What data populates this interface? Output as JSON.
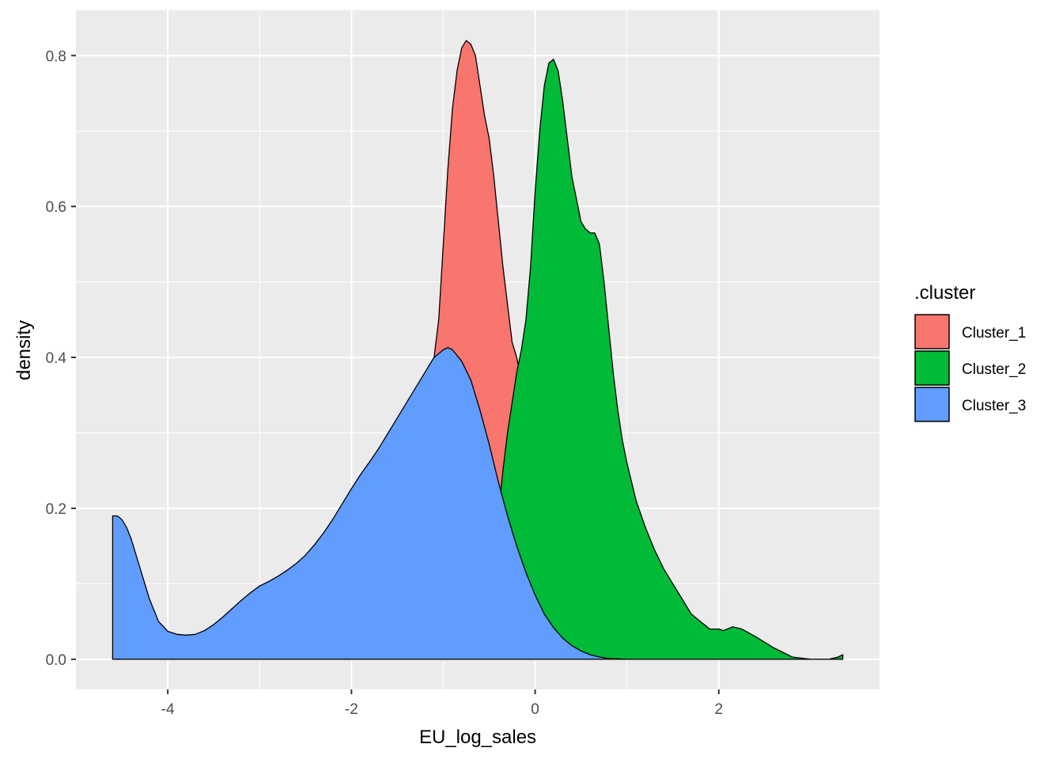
{
  "chart_data": {
    "type": "area",
    "xlabel": "EU_log_sales",
    "ylabel": "density",
    "xlim": [
      -5.0,
      3.75
    ],
    "ylim": [
      -0.04,
      0.86
    ],
    "x_ticks": [
      -4,
      -2,
      0,
      2
    ],
    "y_ticks": [
      0.0,
      0.2,
      0.4,
      0.6,
      0.8
    ],
    "x_tick_labels": [
      "-4",
      "-2",
      "0",
      "2"
    ],
    "y_tick_labels": [
      "0.0",
      "0.2",
      "0.4",
      "0.6",
      "0.8"
    ],
    "grid": true,
    "legend": {
      "title": ".cluster",
      "position": "right"
    },
    "series": [
      {
        "name": "Cluster_1",
        "color": "#F8766D",
        "points": [
          [
            -1.1,
            0.0
          ],
          [
            -1.1,
            0.4
          ],
          [
            -1.05,
            0.45
          ],
          [
            -1.0,
            0.55
          ],
          [
            -0.95,
            0.65
          ],
          [
            -0.9,
            0.73
          ],
          [
            -0.85,
            0.78
          ],
          [
            -0.8,
            0.81
          ],
          [
            -0.75,
            0.82
          ],
          [
            -0.7,
            0.815
          ],
          [
            -0.65,
            0.8
          ],
          [
            -0.6,
            0.76
          ],
          [
            -0.55,
            0.72
          ],
          [
            -0.5,
            0.69
          ],
          [
            -0.45,
            0.64
          ],
          [
            -0.4,
            0.58
          ],
          [
            -0.35,
            0.52
          ],
          [
            -0.3,
            0.47
          ],
          [
            -0.25,
            0.42
          ],
          [
            -0.2,
            0.4
          ],
          [
            -0.15,
            0.37
          ],
          [
            -0.1,
            0.32
          ],
          [
            -0.05,
            0.2
          ],
          [
            0.0,
            0.1
          ],
          [
            0.05,
            0.04
          ],
          [
            0.1,
            0.0
          ]
        ]
      },
      {
        "name": "Cluster_2",
        "color": "#00BA38",
        "points": [
          [
            -0.5,
            0.0
          ],
          [
            -0.5,
            0.03
          ],
          [
            -0.45,
            0.12
          ],
          [
            -0.4,
            0.19
          ],
          [
            -0.35,
            0.25
          ],
          [
            -0.3,
            0.3
          ],
          [
            -0.25,
            0.34
          ],
          [
            -0.2,
            0.38
          ],
          [
            -0.15,
            0.41
          ],
          [
            -0.1,
            0.45
          ],
          [
            -0.05,
            0.52
          ],
          [
            0.0,
            0.62
          ],
          [
            0.05,
            0.7
          ],
          [
            0.1,
            0.76
          ],
          [
            0.15,
            0.79
          ],
          [
            0.2,
            0.795
          ],
          [
            0.25,
            0.78
          ],
          [
            0.3,
            0.74
          ],
          [
            0.35,
            0.69
          ],
          [
            0.4,
            0.64
          ],
          [
            0.45,
            0.61
          ],
          [
            0.5,
            0.58
          ],
          [
            0.55,
            0.57
          ],
          [
            0.6,
            0.565
          ],
          [
            0.65,
            0.565
          ],
          [
            0.7,
            0.55
          ],
          [
            0.75,
            0.5
          ],
          [
            0.8,
            0.44
          ],
          [
            0.85,
            0.38
          ],
          [
            0.9,
            0.33
          ],
          [
            0.95,
            0.29
          ],
          [
            1.0,
            0.26
          ],
          [
            1.1,
            0.21
          ],
          [
            1.2,
            0.175
          ],
          [
            1.3,
            0.145
          ],
          [
            1.4,
            0.12
          ],
          [
            1.5,
            0.1
          ],
          [
            1.6,
            0.08
          ],
          [
            1.7,
            0.06
          ],
          [
            1.8,
            0.05
          ],
          [
            1.9,
            0.04
          ],
          [
            2.0,
            0.04
          ],
          [
            2.05,
            0.038
          ],
          [
            2.15,
            0.043
          ],
          [
            2.25,
            0.04
          ],
          [
            2.4,
            0.03
          ],
          [
            2.6,
            0.015
          ],
          [
            2.8,
            0.003
          ],
          [
            3.0,
            0.0
          ],
          [
            3.2,
            0.0
          ],
          [
            3.3,
            0.003
          ],
          [
            3.35,
            0.006
          ],
          [
            3.35,
            0.0
          ]
        ]
      },
      {
        "name": "Cluster_3",
        "color": "#619CFF",
        "points": [
          [
            -4.6,
            0.0
          ],
          [
            -4.6,
            0.19
          ],
          [
            -4.55,
            0.19
          ],
          [
            -4.5,
            0.185
          ],
          [
            -4.45,
            0.175
          ],
          [
            -4.4,
            0.16
          ],
          [
            -4.3,
            0.12
          ],
          [
            -4.2,
            0.08
          ],
          [
            -4.1,
            0.05
          ],
          [
            -4.0,
            0.037
          ],
          [
            -3.9,
            0.033
          ],
          [
            -3.8,
            0.032
          ],
          [
            -3.7,
            0.033
          ],
          [
            -3.6,
            0.038
          ],
          [
            -3.5,
            0.046
          ],
          [
            -3.4,
            0.056
          ],
          [
            -3.3,
            0.067
          ],
          [
            -3.2,
            0.078
          ],
          [
            -3.1,
            0.088
          ],
          [
            -3.0,
            0.097
          ],
          [
            -2.9,
            0.103
          ],
          [
            -2.8,
            0.11
          ],
          [
            -2.7,
            0.118
          ],
          [
            -2.6,
            0.127
          ],
          [
            -2.5,
            0.138
          ],
          [
            -2.4,
            0.152
          ],
          [
            -2.3,
            0.168
          ],
          [
            -2.2,
            0.186
          ],
          [
            -2.1,
            0.206
          ],
          [
            -2.0,
            0.226
          ],
          [
            -1.9,
            0.245
          ],
          [
            -1.8,
            0.262
          ],
          [
            -1.7,
            0.28
          ],
          [
            -1.6,
            0.3
          ],
          [
            -1.5,
            0.32
          ],
          [
            -1.4,
            0.34
          ],
          [
            -1.3,
            0.36
          ],
          [
            -1.2,
            0.38
          ],
          [
            -1.1,
            0.4
          ],
          [
            -1.0,
            0.41
          ],
          [
            -0.95,
            0.413
          ],
          [
            -0.9,
            0.41
          ],
          [
            -0.8,
            0.395
          ],
          [
            -0.7,
            0.37
          ],
          [
            -0.6,
            0.33
          ],
          [
            -0.5,
            0.285
          ],
          [
            -0.4,
            0.235
          ],
          [
            -0.3,
            0.19
          ],
          [
            -0.2,
            0.15
          ],
          [
            -0.1,
            0.115
          ],
          [
            0.0,
            0.085
          ],
          [
            0.1,
            0.06
          ],
          [
            0.2,
            0.042
          ],
          [
            0.3,
            0.028
          ],
          [
            0.4,
            0.018
          ],
          [
            0.5,
            0.011
          ],
          [
            0.6,
            0.006
          ],
          [
            0.7,
            0.003
          ],
          [
            0.8,
            0.001
          ],
          [
            1.0,
            0.0
          ]
        ]
      }
    ]
  }
}
